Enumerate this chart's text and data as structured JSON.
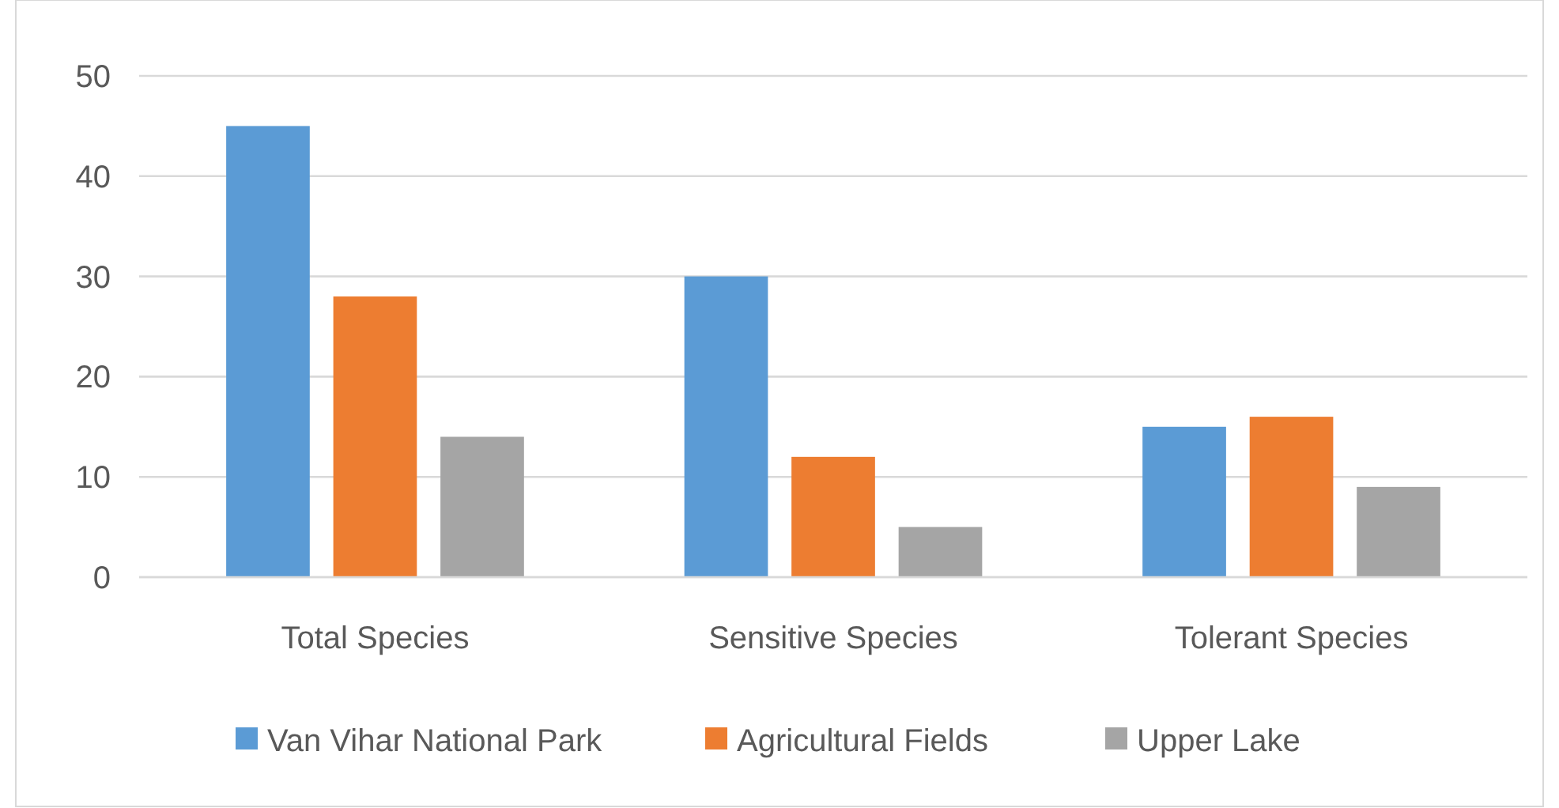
{
  "chart_data": {
    "type": "bar",
    "categories": [
      "Total Species",
      "Sensitive Species",
      "Tolerant Species"
    ],
    "series": [
      {
        "name": "Van Vihar National Park",
        "color": "#5b9bd5",
        "values": [
          45,
          30,
          15
        ]
      },
      {
        "name": "Agricultural Fields",
        "color": "#ed7d31",
        "values": [
          28,
          12,
          16
        ]
      },
      {
        "name": "Upper Lake",
        "color": "#a5a5a5",
        "values": [
          14,
          5,
          9
        ]
      }
    ],
    "ylim": [
      0,
      50
    ],
    "yticks": [
      0,
      10,
      20,
      30,
      40,
      50
    ],
    "grid": "y",
    "legend": "bottom"
  }
}
